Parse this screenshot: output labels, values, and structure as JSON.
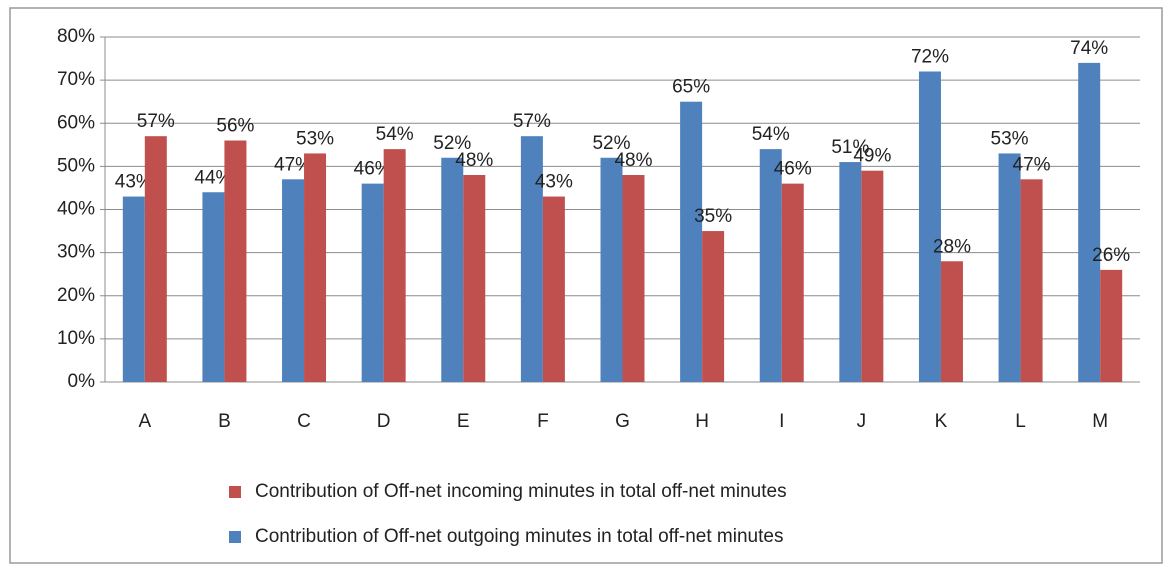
{
  "chart_data": {
    "type": "bar",
    "categories": [
      "A",
      "B",
      "C",
      "D",
      "E",
      "F",
      "G",
      "H",
      "I",
      "J",
      "K",
      "L",
      "M"
    ],
    "series": [
      {
        "name": "Contribution of Off-net outgoing minutes in total off-net minutes",
        "color": "#4f81bd",
        "values": [
          43,
          44,
          47,
          46,
          52,
          57,
          52,
          65,
          54,
          51,
          72,
          53,
          74
        ],
        "value_labels": [
          "43%",
          "44%",
          "47%",
          "46%",
          "52%",
          "57%",
          "52%",
          "65%",
          "54%",
          "51%",
          "72%",
          "53%",
          "74%"
        ]
      },
      {
        "name": "Contribution of Off-net incoming minutes in total off-net minutes",
        "color": "#c0504d",
        "values": [
          57,
          56,
          53,
          54,
          48,
          43,
          48,
          35,
          46,
          49,
          28,
          47,
          26
        ],
        "value_labels": [
          "57%",
          "56%",
          "53%",
          "54%",
          "48%",
          "43%",
          "48%",
          "35%",
          "46%",
          "49%",
          "28%",
          "47%",
          "26%"
        ]
      }
    ],
    "ylim": [
      0,
      80
    ],
    "yticks": [
      {
        "value": 0,
        "label": "0%"
      },
      {
        "value": 10,
        "label": "10%"
      },
      {
        "value": 20,
        "label": "20%"
      },
      {
        "value": 30,
        "label": "30%"
      },
      {
        "value": 40,
        "label": "40%"
      },
      {
        "value": 50,
        "label": "50%"
      },
      {
        "value": 60,
        "label": "60%"
      },
      {
        "value": 70,
        "label": "70%"
      },
      {
        "value": 80,
        "label": "80%"
      }
    ],
    "grid": true,
    "legend": "bottom"
  }
}
